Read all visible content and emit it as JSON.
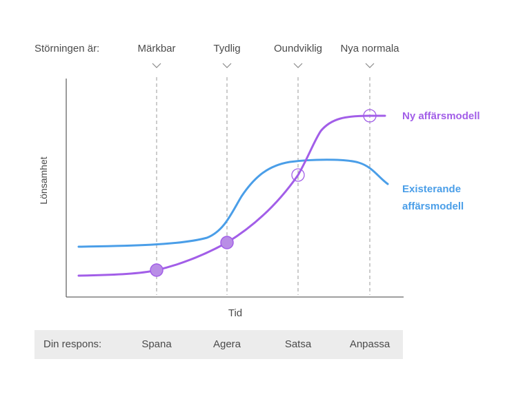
{
  "header": {
    "row_label": "Störningen är:",
    "phases": [
      "Märkbar",
      "Tydlig",
      "Oundviklig",
      "Nya normala"
    ]
  },
  "axes": {
    "ylabel": "Lönsamhet",
    "xlabel": "Tid"
  },
  "series": {
    "new_model": {
      "line1": "Ny affärsmodell",
      "color": "#a25ee8"
    },
    "existing_model": {
      "line1": "Existerande",
      "line2": "affärsmodell",
      "color": "#4a9ee8"
    }
  },
  "response": {
    "row_label": "Din respons:",
    "items": [
      "Spana",
      "Agera",
      "Satsa",
      "Anpassa"
    ],
    "background": "#ececec"
  },
  "icons": [
    "chevron-down-icon"
  ]
}
